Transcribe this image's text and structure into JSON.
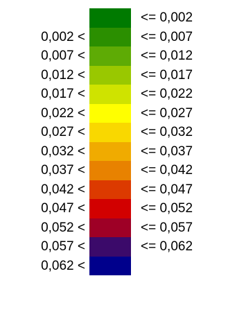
{
  "legend": {
    "classes": [
      {
        "lower": "",
        "upper": "<= 0,002",
        "color": "#007a00"
      },
      {
        "lower": "0,002 <",
        "upper": "<= 0,007",
        "color": "#2b8f00"
      },
      {
        "lower": "0,007 <",
        "upper": "<= 0,012",
        "color": "#5eab05"
      },
      {
        "lower": "0,012 <",
        "upper": "<= 0,017",
        "color": "#99c800"
      },
      {
        "lower": "0,017 <",
        "upper": "<= 0,022",
        "color": "#cfe300"
      },
      {
        "lower": "0,022 <",
        "upper": "<= 0,027",
        "color": "#ffff00"
      },
      {
        "lower": "0,027 <",
        "upper": "<= 0,032",
        "color": "#f9d800"
      },
      {
        "lower": "0,032 <",
        "upper": "<= 0,037",
        "color": "#f0ab00"
      },
      {
        "lower": "0,037 <",
        "upper": "<= 0,042",
        "color": "#e88200"
      },
      {
        "lower": "0,042 <",
        "upper": "<= 0,047",
        "color": "#dc3a00"
      },
      {
        "lower": "0,047 <",
        "upper": "<= 0,052",
        "color": "#d20000"
      },
      {
        "lower": "0,052 <",
        "upper": "<= 0,057",
        "color": "#9e0026"
      },
      {
        "lower": "0,057 <",
        "upper": "<= 0,062",
        "color": "#3b0a6a"
      },
      {
        "lower": "0,062 <",
        "upper": "",
        "color": "#00008c"
      }
    ]
  }
}
